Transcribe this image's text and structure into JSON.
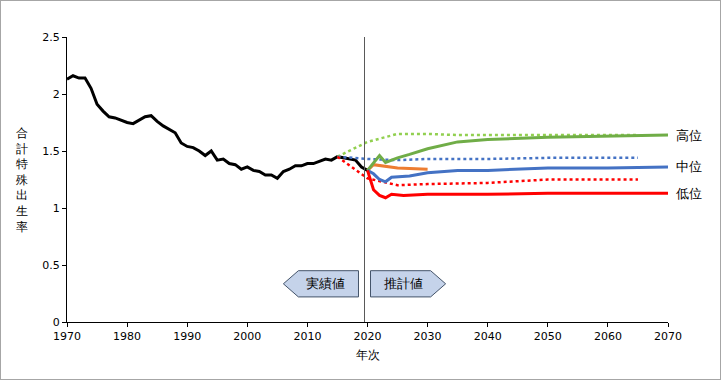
{
  "chart_data": {
    "type": "line",
    "x_label": "年次",
    "y_label": "合計特殊出生率",
    "xlim": [
      1970,
      2070
    ],
    "xticks": [
      1970,
      1980,
      1990,
      2000,
      2010,
      2020,
      2030,
      2040,
      2050,
      2060,
      2070
    ],
    "ylim": [
      0,
      2.5
    ],
    "yticks": [
      0,
      0.5,
      1,
      1.5,
      2,
      2.5
    ],
    "grid": false,
    "annotations": [
      "実績値",
      "推計値"
    ],
    "series": [
      {
        "color": "#000000",
        "line_style": "solid",
        "x": [
          1970,
          1971,
          1972,
          1973,
          1974,
          1975,
          1976,
          1977,
          1978,
          1979,
          1980,
          1981,
          1982,
          1983,
          1984,
          1985,
          1986,
          1987,
          1988,
          1989,
          1990,
          1991,
          1992,
          1993,
          1994,
          1995,
          1996,
          1997,
          1998,
          1999,
          2000,
          2001,
          2002,
          2003,
          2004,
          2005,
          2006,
          2007,
          2008,
          2009,
          2010,
          2011,
          2012,
          2013,
          2014,
          2015,
          2016,
          2017,
          2018,
          2019,
          2020
        ],
        "values": [
          2.13,
          2.16,
          2.14,
          2.14,
          2.05,
          1.91,
          1.85,
          1.8,
          1.79,
          1.77,
          1.75,
          1.74,
          1.77,
          1.8,
          1.81,
          1.76,
          1.72,
          1.69,
          1.66,
          1.57,
          1.54,
          1.53,
          1.5,
          1.46,
          1.5,
          1.42,
          1.43,
          1.39,
          1.38,
          1.34,
          1.36,
          1.33,
          1.32,
          1.29,
          1.29,
          1.26,
          1.32,
          1.34,
          1.37,
          1.37,
          1.39,
          1.39,
          1.41,
          1.43,
          1.42,
          1.45,
          1.44,
          1.43,
          1.42,
          1.36,
          1.33
        ]
      },
      {
        "color": "#92d050",
        "line_style": "dotted",
        "x": [
          2015,
          2020,
          2025,
          2030,
          2035,
          2040,
          2050,
          2065
        ],
        "values": [
          1.45,
          1.58,
          1.65,
          1.65,
          1.64,
          1.64,
          1.64,
          1.64
        ]
      },
      {
        "color": "#4472c4",
        "line_style": "dotted",
        "x": [
          2015,
          2020,
          2025,
          2030,
          2040,
          2050,
          2065
        ],
        "values": [
          1.45,
          1.43,
          1.42,
          1.43,
          1.43,
          1.44,
          1.44
        ]
      },
      {
        "color": "#ff0000",
        "line_style": "dotted",
        "x": [
          2015,
          2020,
          2025,
          2030,
          2040,
          2050,
          2065
        ],
        "values": [
          1.45,
          1.26,
          1.2,
          1.21,
          1.22,
          1.25,
          1.25
        ]
      },
      {
        "color": "#ed7d31",
        "line_style": "solid",
        "x": [
          2020,
          2021,
          2025,
          2030
        ],
        "values": [
          1.33,
          1.38,
          1.35,
          1.34
        ]
      },
      {
        "name": "高位",
        "color": "#70ad47",
        "line_style": "solid",
        "x": [
          2020,
          2022,
          2023,
          2025,
          2027,
          2030,
          2035,
          2040,
          2050,
          2060,
          2070
        ],
        "values": [
          1.33,
          1.46,
          1.4,
          1.44,
          1.47,
          1.52,
          1.58,
          1.6,
          1.62,
          1.63,
          1.64
        ]
      },
      {
        "name": "中位",
        "color": "#4472c4",
        "line_style": "solid",
        "x": [
          2020,
          2021,
          2022,
          2023,
          2024,
          2027,
          2030,
          2035,
          2040,
          2050,
          2060,
          2070
        ],
        "values": [
          1.33,
          1.3,
          1.25,
          1.23,
          1.27,
          1.28,
          1.31,
          1.33,
          1.33,
          1.35,
          1.35,
          1.36
        ]
      },
      {
        "name": "低位",
        "color": "#ff0000",
        "line_style": "solid",
        "x": [
          2020,
          2021,
          2022,
          2023,
          2024,
          2026,
          2030,
          2035,
          2040,
          2050,
          2060,
          2070
        ],
        "values": [
          1.33,
          1.16,
          1.11,
          1.09,
          1.12,
          1.11,
          1.12,
          1.12,
          1.12,
          1.13,
          1.13,
          1.13
        ]
      }
    ]
  }
}
